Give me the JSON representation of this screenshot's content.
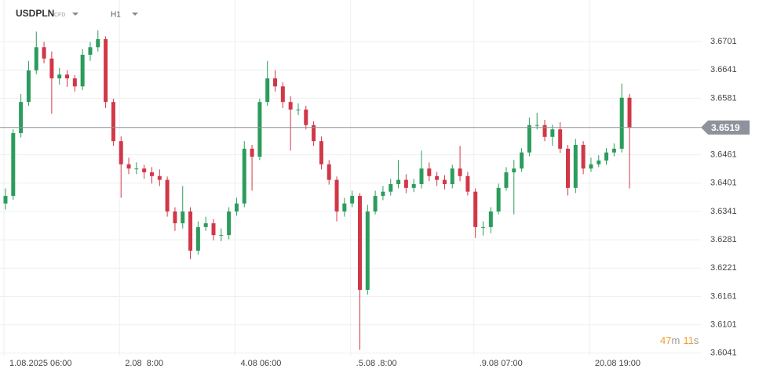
{
  "chart_data": {
    "type": "candlestick",
    "title": "USDPLN",
    "subtitle": "CFD",
    "timeframe": "H1",
    "timer": [
      "47",
      "m",
      "11",
      "s"
    ],
    "up_color": "#2c9c5c",
    "down_color": "#d23747",
    "grid": true,
    "price_line": {
      "value": 3.6519,
      "color": "#8d929c"
    },
    "categories": [
      "1.08.2025 06:00",
      null,
      null,
      null,
      null,
      null,
      null,
      null,
      null,
      null,
      null,
      null,
      null,
      null,
      null,
      "2.08  8:00",
      null,
      null,
      null,
      null,
      null,
      null,
      null,
      null,
      null,
      null,
      null,
      null,
      null,
      null,
      "4.08 06:00",
      null,
      null,
      null,
      null,
      null,
      null,
      null,
      null,
      null,
      null,
      null,
      null,
      null,
      null,
      ".5.08 .8:00",
      null,
      null,
      null,
      null,
      null,
      null,
      null,
      null,
      null,
      null,
      null,
      null,
      null,
      null,
      null,
      ".9.08 07:00",
      null,
      null,
      null,
      null,
      null,
      null,
      null,
      null,
      null,
      null,
      null,
      null,
      null,
      null,
      "20.08 19:00",
      null,
      null,
      null,
      null,
      null
    ],
    "open": [
      3.6358,
      3.6374,
      3.6507,
      3.6573,
      3.664,
      3.6689,
      3.6665,
      3.6623,
      3.6631,
      3.6623,
      3.6606,
      3.6673,
      3.6689,
      3.6706,
      3.6573,
      3.649,
      3.6441,
      3.6432,
      3.6432,
      3.6424,
      3.6416,
      3.6408,
      3.6341,
      3.6316,
      3.6341,
      3.6258,
      3.6308,
      3.6316,
      3.6291,
      3.6291,
      3.6341,
      3.6358,
      3.6474,
      3.6457,
      3.6573,
      3.6623,
      3.6606,
      3.6573,
      3.6557,
      3.6557,
      3.6524,
      3.649,
      3.6441,
      3.6408,
      3.6341,
      3.6358,
      3.6374,
      3.6175,
      3.6341,
      3.6374,
      3.6383,
      3.6399,
      3.6408,
      3.6391,
      3.6399,
      3.6432,
      3.6416,
      3.6408,
      3.6399,
      3.6432,
      3.6416,
      3.6383,
      3.6308,
      3.6308,
      3.6341,
      3.6391,
      3.6424,
      3.6432,
      3.6466,
      3.6524,
      3.6524,
      3.6499,
      3.6515,
      3.6474,
      3.6391,
      3.6482,
      3.6432,
      3.6441,
      3.6449,
      3.6466,
      3.6474,
      3.6582
    ],
    "high": [
      3.639,
      3.6515,
      3.659,
      3.666,
      3.6722,
      3.67,
      3.668,
      3.6645,
      3.664,
      3.663,
      3.6685,
      3.67,
      3.6725,
      3.6712,
      3.658,
      3.65,
      3.6455,
      3.6445,
      3.644,
      3.6435,
      3.643,
      3.6415,
      3.635,
      3.6395,
      3.635,
      3.632,
      3.633,
      3.6325,
      3.6305,
      3.635,
      3.637,
      3.649,
      3.6482,
      3.658,
      3.666,
      3.664,
      3.6615,
      3.6585,
      3.657,
      3.6565,
      3.6532,
      3.65,
      3.645,
      3.6415,
      3.637,
      3.6385,
      3.638,
      3.6355,
      3.6385,
      3.6395,
      3.641,
      3.645,
      3.642,
      3.641,
      3.647,
      3.6445,
      3.6425,
      3.6418,
      3.644,
      3.648,
      3.6425,
      3.639,
      3.632,
      3.635,
      3.64,
      3.6435,
      3.645,
      3.6475,
      3.654,
      3.655,
      3.6535,
      3.6525,
      3.653,
      3.6482,
      3.6495,
      3.649,
      3.6455,
      3.646,
      3.6475,
      3.6485,
      3.6612,
      3.659
    ],
    "low": [
      3.6345,
      3.6366,
      3.6498,
      3.6565,
      3.6632,
      3.6655,
      3.6548,
      3.661,
      3.6605,
      3.6595,
      3.6598,
      3.666,
      3.668,
      3.656,
      3.648,
      3.637,
      3.642,
      3.642,
      3.641,
      3.64,
      3.6395,
      3.633,
      3.63,
      3.6305,
      3.624,
      3.625,
      3.63,
      3.628,
      3.6278,
      3.6282,
      3.6332,
      3.635,
      3.6385,
      3.645,
      3.6565,
      3.6595,
      3.656,
      3.647,
      3.6545,
      3.6515,
      3.648,
      3.643,
      3.6398,
      3.632,
      3.633,
      3.635,
      3.6048,
      3.6165,
      3.6335,
      3.6365,
      3.6375,
      3.639,
      3.638,
      3.6382,
      3.639,
      3.6405,
      3.6395,
      3.6388,
      3.639,
      3.6405,
      3.6375,
      3.6285,
      3.629,
      3.6295,
      3.6335,
      3.6385,
      3.6335,
      3.6425,
      3.6458,
      3.6515,
      3.649,
      3.648,
      3.6465,
      3.6375,
      3.638,
      3.642,
      3.6425,
      3.6435,
      3.644,
      3.6458,
      3.6466,
      3.639
    ],
    "close": [
      3.6374,
      3.6507,
      3.6573,
      3.664,
      3.6689,
      3.6665,
      3.6623,
      3.6631,
      3.6623,
      3.6606,
      3.6673,
      3.6689,
      3.6706,
      3.6573,
      3.649,
      3.6441,
      3.6432,
      3.6432,
      3.6424,
      3.6416,
      3.6408,
      3.6341,
      3.6316,
      3.6341,
      3.6258,
      3.6308,
      3.6316,
      3.6291,
      3.6291,
      3.6341,
      3.6358,
      3.6474,
      3.6457,
      3.6573,
      3.6623,
      3.6606,
      3.6573,
      3.6557,
      3.6557,
      3.6524,
      3.649,
      3.6441,
      3.6408,
      3.6341,
      3.6358,
      3.6374,
      3.6175,
      3.6341,
      3.6374,
      3.6383,
      3.6399,
      3.6408,
      3.6391,
      3.6399,
      3.6432,
      3.6416,
      3.6408,
      3.6399,
      3.6432,
      3.6416,
      3.6383,
      3.6308,
      3.6308,
      3.6341,
      3.6391,
      3.6424,
      3.6432,
      3.6466,
      3.6524,
      3.6524,
      3.6499,
      3.6515,
      3.6474,
      3.6391,
      3.6482,
      3.6432,
      3.6441,
      3.6449,
      3.6466,
      3.6474,
      3.6582,
      3.6519
    ],
    "ylim": [
      3.6034,
      3.6789
    ],
    "yticks": [
      3.6701,
      3.6641,
      3.6581,
      3.6461,
      3.6401,
      3.6341,
      3.6281,
      3.6221,
      3.6161,
      3.6101,
      3.6041
    ]
  }
}
